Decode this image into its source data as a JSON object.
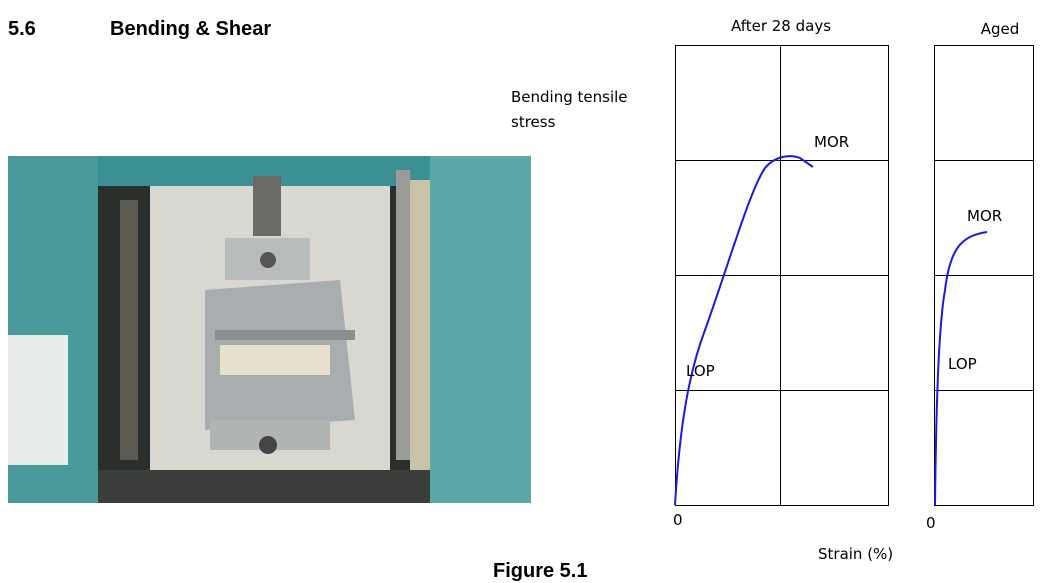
{
  "heading": {
    "number": "5.6",
    "title": "Bending & Shear"
  },
  "figure": {
    "y_axis_label": "Bending tensile stress",
    "x_axis_label": "Strain (%)",
    "caption": "Figure 5.1",
    "panels": [
      {
        "title": "After 28 days",
        "origin": "0",
        "labels": [
          "MOR",
          "LOP"
        ]
      },
      {
        "title": "Aged",
        "origin": "0",
        "labels": [
          "MOR",
          "LOP"
        ]
      }
    ]
  }
}
